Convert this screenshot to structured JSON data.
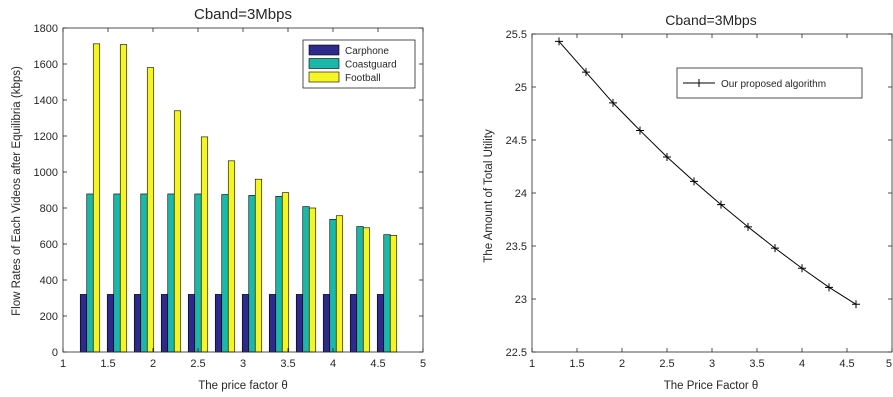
{
  "chart_data": [
    {
      "type": "bar",
      "title": "Cband=3Mbps",
      "xlabel": "The price factor θ",
      "ylabel": "Flow Rates of Each Videos after Equilibria (kbps)",
      "x": [
        1.3,
        1.6,
        1.9,
        2.2,
        2.5,
        2.8,
        3.1,
        3.4,
        3.7,
        4.0,
        4.3,
        4.6
      ],
      "series": [
        {
          "name": "Carphone",
          "color": "#2e2a8c",
          "values": [
            320,
            320,
            320,
            320,
            320,
            320,
            320,
            320,
            320,
            320,
            320,
            320
          ]
        },
        {
          "name": "Coastguard",
          "color": "#19b8a8",
          "values": [
            878,
            878,
            878,
            878,
            878,
            875,
            870,
            865,
            808,
            737,
            697,
            652
          ]
        },
        {
          "name": "Football",
          "color": "#f5f526",
          "values": [
            1712,
            1708,
            1580,
            1340,
            1195,
            1062,
            960,
            885,
            800,
            757,
            690,
            648
          ]
        }
      ],
      "xlim": [
        1,
        5
      ],
      "ylim": [
        0,
        1800
      ],
      "xticks": [
        "1",
        "1.5",
        "2",
        "2.5",
        "3",
        "3.5",
        "4",
        "4.5",
        "5"
      ],
      "yticks": [
        "0",
        "200",
        "400",
        "600",
        "800",
        "1000",
        "1200",
        "1400",
        "1600",
        "1800"
      ],
      "legend": "top-right",
      "grid": false
    },
    {
      "type": "line",
      "title": "Cband=3Mbps",
      "xlabel": "The Price Factor θ",
      "ylabel": "The Amount of Total Utility",
      "x": [
        1.3,
        1.6,
        1.9,
        2.2,
        2.5,
        2.8,
        3.1,
        3.4,
        3.7,
        4.0,
        4.3,
        4.6
      ],
      "series": [
        {
          "name": "Our proposed algorithm",
          "color": "#000000",
          "marker": "+",
          "values": [
            25.43,
            25.14,
            24.85,
            24.59,
            24.34,
            24.11,
            23.89,
            23.68,
            23.48,
            23.29,
            23.11,
            22.95
          ]
        }
      ],
      "xlim": [
        1,
        5
      ],
      "ylim": [
        22.5,
        25.5
      ],
      "xticks": [
        "1",
        "1.5",
        "2",
        "2.5",
        "3",
        "3.5",
        "4",
        "4.5",
        "5"
      ],
      "yticks": [
        "22.5",
        "23",
        "23.5",
        "24",
        "24.5",
        "25",
        "25.5"
      ],
      "legend": "top-right",
      "grid": false
    }
  ]
}
